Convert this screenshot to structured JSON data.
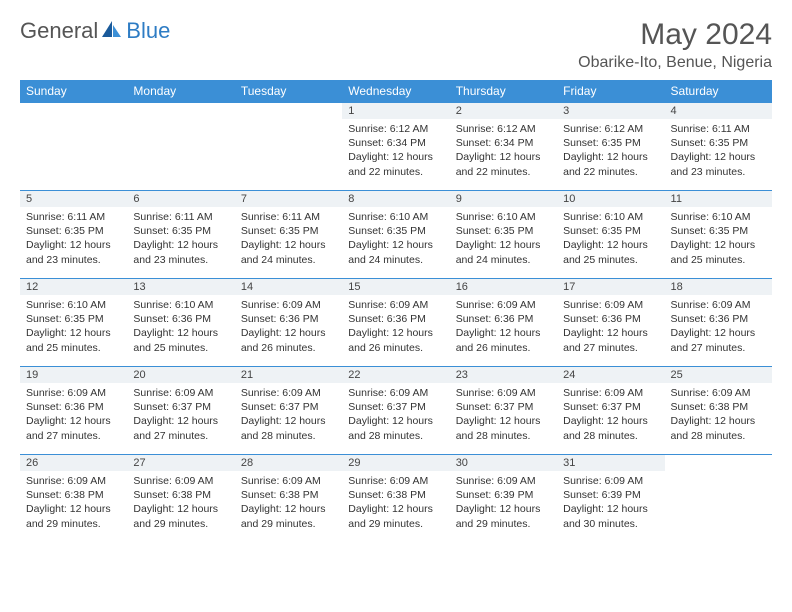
{
  "logo": {
    "text1": "General",
    "text2": "Blue",
    "text1_color": "#555555",
    "text2_color": "#2e7cc4"
  },
  "title": "May 2024",
  "location": "Obarike-Ito, Benue, Nigeria",
  "day_headers": [
    "Sunday",
    "Monday",
    "Tuesday",
    "Wednesday",
    "Thursday",
    "Friday",
    "Saturday"
  ],
  "header_bg": "#3b8fd6",
  "header_text_color": "#ffffff",
  "daynum_bg": "#eef2f5",
  "border_color": "#3b8fd6",
  "weeks": [
    [
      null,
      null,
      null,
      {
        "n": "1",
        "sunrise": "Sunrise: 6:12 AM",
        "sunset": "Sunset: 6:34 PM",
        "day1": "Daylight: 12 hours",
        "day2": "and 22 minutes."
      },
      {
        "n": "2",
        "sunrise": "Sunrise: 6:12 AM",
        "sunset": "Sunset: 6:34 PM",
        "day1": "Daylight: 12 hours",
        "day2": "and 22 minutes."
      },
      {
        "n": "3",
        "sunrise": "Sunrise: 6:12 AM",
        "sunset": "Sunset: 6:35 PM",
        "day1": "Daylight: 12 hours",
        "day2": "and 22 minutes."
      },
      {
        "n": "4",
        "sunrise": "Sunrise: 6:11 AM",
        "sunset": "Sunset: 6:35 PM",
        "day1": "Daylight: 12 hours",
        "day2": "and 23 minutes."
      }
    ],
    [
      {
        "n": "5",
        "sunrise": "Sunrise: 6:11 AM",
        "sunset": "Sunset: 6:35 PM",
        "day1": "Daylight: 12 hours",
        "day2": "and 23 minutes."
      },
      {
        "n": "6",
        "sunrise": "Sunrise: 6:11 AM",
        "sunset": "Sunset: 6:35 PM",
        "day1": "Daylight: 12 hours",
        "day2": "and 23 minutes."
      },
      {
        "n": "7",
        "sunrise": "Sunrise: 6:11 AM",
        "sunset": "Sunset: 6:35 PM",
        "day1": "Daylight: 12 hours",
        "day2": "and 24 minutes."
      },
      {
        "n": "8",
        "sunrise": "Sunrise: 6:10 AM",
        "sunset": "Sunset: 6:35 PM",
        "day1": "Daylight: 12 hours",
        "day2": "and 24 minutes."
      },
      {
        "n": "9",
        "sunrise": "Sunrise: 6:10 AM",
        "sunset": "Sunset: 6:35 PM",
        "day1": "Daylight: 12 hours",
        "day2": "and 24 minutes."
      },
      {
        "n": "10",
        "sunrise": "Sunrise: 6:10 AM",
        "sunset": "Sunset: 6:35 PM",
        "day1": "Daylight: 12 hours",
        "day2": "and 25 minutes."
      },
      {
        "n": "11",
        "sunrise": "Sunrise: 6:10 AM",
        "sunset": "Sunset: 6:35 PM",
        "day1": "Daylight: 12 hours",
        "day2": "and 25 minutes."
      }
    ],
    [
      {
        "n": "12",
        "sunrise": "Sunrise: 6:10 AM",
        "sunset": "Sunset: 6:35 PM",
        "day1": "Daylight: 12 hours",
        "day2": "and 25 minutes."
      },
      {
        "n": "13",
        "sunrise": "Sunrise: 6:10 AM",
        "sunset": "Sunset: 6:36 PM",
        "day1": "Daylight: 12 hours",
        "day2": "and 25 minutes."
      },
      {
        "n": "14",
        "sunrise": "Sunrise: 6:09 AM",
        "sunset": "Sunset: 6:36 PM",
        "day1": "Daylight: 12 hours",
        "day2": "and 26 minutes."
      },
      {
        "n": "15",
        "sunrise": "Sunrise: 6:09 AM",
        "sunset": "Sunset: 6:36 PM",
        "day1": "Daylight: 12 hours",
        "day2": "and 26 minutes."
      },
      {
        "n": "16",
        "sunrise": "Sunrise: 6:09 AM",
        "sunset": "Sunset: 6:36 PM",
        "day1": "Daylight: 12 hours",
        "day2": "and 26 minutes."
      },
      {
        "n": "17",
        "sunrise": "Sunrise: 6:09 AM",
        "sunset": "Sunset: 6:36 PM",
        "day1": "Daylight: 12 hours",
        "day2": "and 27 minutes."
      },
      {
        "n": "18",
        "sunrise": "Sunrise: 6:09 AM",
        "sunset": "Sunset: 6:36 PM",
        "day1": "Daylight: 12 hours",
        "day2": "and 27 minutes."
      }
    ],
    [
      {
        "n": "19",
        "sunrise": "Sunrise: 6:09 AM",
        "sunset": "Sunset: 6:36 PM",
        "day1": "Daylight: 12 hours",
        "day2": "and 27 minutes."
      },
      {
        "n": "20",
        "sunrise": "Sunrise: 6:09 AM",
        "sunset": "Sunset: 6:37 PM",
        "day1": "Daylight: 12 hours",
        "day2": "and 27 minutes."
      },
      {
        "n": "21",
        "sunrise": "Sunrise: 6:09 AM",
        "sunset": "Sunset: 6:37 PM",
        "day1": "Daylight: 12 hours",
        "day2": "and 28 minutes."
      },
      {
        "n": "22",
        "sunrise": "Sunrise: 6:09 AM",
        "sunset": "Sunset: 6:37 PM",
        "day1": "Daylight: 12 hours",
        "day2": "and 28 minutes."
      },
      {
        "n": "23",
        "sunrise": "Sunrise: 6:09 AM",
        "sunset": "Sunset: 6:37 PM",
        "day1": "Daylight: 12 hours",
        "day2": "and 28 minutes."
      },
      {
        "n": "24",
        "sunrise": "Sunrise: 6:09 AM",
        "sunset": "Sunset: 6:37 PM",
        "day1": "Daylight: 12 hours",
        "day2": "and 28 minutes."
      },
      {
        "n": "25",
        "sunrise": "Sunrise: 6:09 AM",
        "sunset": "Sunset: 6:38 PM",
        "day1": "Daylight: 12 hours",
        "day2": "and 28 minutes."
      }
    ],
    [
      {
        "n": "26",
        "sunrise": "Sunrise: 6:09 AM",
        "sunset": "Sunset: 6:38 PM",
        "day1": "Daylight: 12 hours",
        "day2": "and 29 minutes."
      },
      {
        "n": "27",
        "sunrise": "Sunrise: 6:09 AM",
        "sunset": "Sunset: 6:38 PM",
        "day1": "Daylight: 12 hours",
        "day2": "and 29 minutes."
      },
      {
        "n": "28",
        "sunrise": "Sunrise: 6:09 AM",
        "sunset": "Sunset: 6:38 PM",
        "day1": "Daylight: 12 hours",
        "day2": "and 29 minutes."
      },
      {
        "n": "29",
        "sunrise": "Sunrise: 6:09 AM",
        "sunset": "Sunset: 6:38 PM",
        "day1": "Daylight: 12 hours",
        "day2": "and 29 minutes."
      },
      {
        "n": "30",
        "sunrise": "Sunrise: 6:09 AM",
        "sunset": "Sunset: 6:39 PM",
        "day1": "Daylight: 12 hours",
        "day2": "and 29 minutes."
      },
      {
        "n": "31",
        "sunrise": "Sunrise: 6:09 AM",
        "sunset": "Sunset: 6:39 PM",
        "day1": "Daylight: 12 hours",
        "day2": "and 30 minutes."
      },
      null
    ]
  ]
}
